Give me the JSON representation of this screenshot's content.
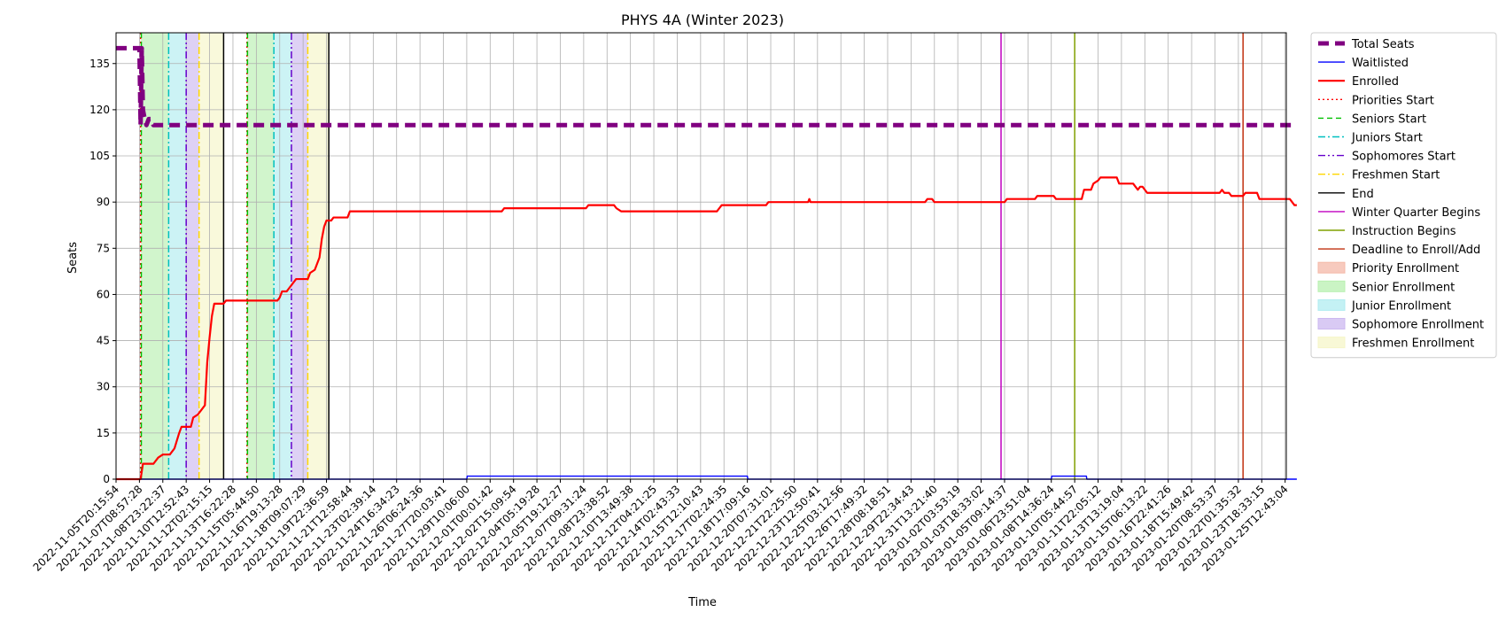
{
  "chart_data": {
    "type": "line",
    "title": "PHYS 4A (Winter 2023)",
    "xlabel": "Time",
    "ylabel": "Seats",
    "ylim": [
      0,
      145
    ],
    "yticks": [
      0,
      15,
      30,
      45,
      60,
      75,
      90,
      105,
      120,
      135
    ],
    "grid": true,
    "legend_position": "outside-right",
    "x_tick_labels": [
      "2022-11-05T20:15:54",
      "2022-11-07T08:57:28",
      "2022-11-08T23:22:37",
      "2022-11-10T12:52:43",
      "2022-11-12T02:15:15",
      "2022-11-13T16:22:28",
      "2022-11-15T05:44:50",
      "2022-11-16T19:13:28",
      "2022-11-18T09:07:29",
      "2022-11-19T22:36:59",
      "2022-11-21T12:58:44",
      "2022-11-23T02:39:14",
      "2022-11-24T16:34:23",
      "2022-11-26T06:24:36",
      "2022-11-27T20:03:41",
      "2022-11-29T10:06:00",
      "2022-12-01T00:01:42",
      "2022-12-02T15:09:54",
      "2022-12-04T05:19:28",
      "2022-12-05T19:12:27",
      "2022-12-07T09:31:24",
      "2022-12-08T23:38:52",
      "2022-12-10T13:49:38",
      "2022-12-12T04:21:25",
      "2022-12-14T02:43:33",
      "2022-12-15T12:10:43",
      "2022-12-17T02:24:35",
      "2022-12-18T17:09:16",
      "2022-12-20T07:31:01",
      "2022-12-21T22:25:50",
      "2022-12-23T12:50:41",
      "2022-12-25T03:12:56",
      "2022-12-26T17:49:32",
      "2022-12-28T08:18:51",
      "2022-12-29T22:34:43",
      "2022-12-31T13:21:40",
      "2023-01-02T03:53:19",
      "2023-01-03T18:33:02",
      "2023-01-05T09:14:37",
      "2023-01-06T23:51:04",
      "2023-01-08T14:36:24",
      "2023-01-10T05:44:57",
      "2023-01-11T22:05:12",
      "2023-01-13T13:19:04",
      "2023-01-15T06:13:22",
      "2023-01-16T22:41:26",
      "2023-01-18T15:49:42",
      "2023-01-20T08:53:37",
      "2023-01-22T01:35:32",
      "2023-01-23T18:33:15",
      "2023-01-25T12:43:04"
    ],
    "series": [
      {
        "name": "Total Seats",
        "color": "#800080",
        "style": "dashed-thick",
        "points": [
          [
            0,
            140
          ],
          [
            1.0,
            140
          ],
          [
            1.05,
            115
          ],
          [
            1.1,
            140
          ],
          [
            1.15,
            120
          ],
          [
            1.2,
            118
          ],
          [
            1.3,
            115
          ],
          [
            1.4,
            117
          ],
          [
            1.5,
            117
          ],
          [
            1.6,
            115
          ],
          [
            50.5,
            115
          ]
        ]
      },
      {
        "name": "Waitlisted",
        "color": "#0000ff",
        "style": "solid",
        "points": [
          [
            0,
            0
          ],
          [
            15.0,
            0
          ],
          [
            15.02,
            1
          ],
          [
            27.0,
            1
          ],
          [
            27.02,
            0
          ],
          [
            40.0,
            0
          ],
          [
            40.02,
            1
          ],
          [
            41.5,
            1
          ],
          [
            41.52,
            0
          ],
          [
            50.5,
            0
          ]
        ]
      },
      {
        "name": "Enrolled",
        "color": "#ff0000",
        "style": "solid-thick",
        "points": [
          [
            0,
            0
          ],
          [
            1.05,
            0
          ],
          [
            1.15,
            5
          ],
          [
            1.6,
            5
          ],
          [
            1.8,
            7
          ],
          [
            2.0,
            8
          ],
          [
            2.3,
            8
          ],
          [
            2.5,
            10
          ],
          [
            2.7,
            15
          ],
          [
            2.8,
            17
          ],
          [
            3.2,
            17
          ],
          [
            3.3,
            20
          ],
          [
            3.5,
            21
          ],
          [
            3.7,
            23
          ],
          [
            3.8,
            24
          ],
          [
            3.9,
            38
          ],
          [
            4.0,
            46
          ],
          [
            4.1,
            53
          ],
          [
            4.2,
            57
          ],
          [
            4.6,
            57
          ],
          [
            4.7,
            58
          ],
          [
            5.6,
            58
          ],
          [
            5.9,
            58
          ],
          [
            6.9,
            58
          ],
          [
            7.0,
            59
          ],
          [
            7.1,
            61
          ],
          [
            7.3,
            61
          ],
          [
            7.5,
            63
          ],
          [
            7.7,
            65
          ],
          [
            8.2,
            65
          ],
          [
            8.3,
            67
          ],
          [
            8.5,
            68
          ],
          [
            8.7,
            72
          ],
          [
            8.8,
            78
          ],
          [
            8.9,
            82
          ],
          [
            9.0,
            84
          ],
          [
            9.2,
            84
          ],
          [
            9.3,
            85
          ],
          [
            9.9,
            85
          ],
          [
            10.0,
            87
          ],
          [
            16.5,
            87
          ],
          [
            16.6,
            88
          ],
          [
            20.1,
            88
          ],
          [
            20.2,
            89
          ],
          [
            21.3,
            89
          ],
          [
            21.4,
            88
          ],
          [
            21.6,
            87
          ],
          [
            25.7,
            87
          ],
          [
            25.8,
            88
          ],
          [
            25.9,
            89
          ],
          [
            27.8,
            89
          ],
          [
            27.9,
            90
          ],
          [
            29.6,
            90
          ],
          [
            29.65,
            91
          ],
          [
            29.7,
            90
          ],
          [
            34.6,
            90
          ],
          [
            34.7,
            91
          ],
          [
            34.9,
            91
          ],
          [
            35.0,
            90
          ],
          [
            38.0,
            90
          ],
          [
            38.1,
            91
          ],
          [
            39.3,
            91
          ],
          [
            39.4,
            92
          ],
          [
            40.1,
            92
          ],
          [
            40.2,
            91
          ],
          [
            41.3,
            91
          ],
          [
            41.4,
            94
          ],
          [
            41.7,
            94
          ],
          [
            41.8,
            96
          ],
          [
            42.0,
            97
          ],
          [
            42.1,
            98
          ],
          [
            42.8,
            98
          ],
          [
            42.9,
            96
          ],
          [
            43.5,
            96
          ],
          [
            43.6,
            95
          ],
          [
            43.7,
            94
          ],
          [
            43.8,
            95
          ],
          [
            43.9,
            95
          ],
          [
            44.0,
            94
          ],
          [
            44.1,
            93
          ],
          [
            47.2,
            93
          ],
          [
            47.3,
            94
          ],
          [
            47.4,
            93
          ],
          [
            47.6,
            93
          ],
          [
            47.7,
            92
          ],
          [
            48.2,
            92
          ],
          [
            48.3,
            93
          ],
          [
            48.8,
            93
          ],
          [
            48.9,
            91
          ],
          [
            50.2,
            91
          ],
          [
            50.3,
            90
          ],
          [
            50.4,
            89
          ],
          [
            50.5,
            89
          ]
        ]
      }
    ],
    "event_lines": [
      {
        "name": "Priorities Start",
        "color": "#ff0000",
        "style": "dotted",
        "x": [
          1.05,
          5.6
        ]
      },
      {
        "name": "Seniors Start",
        "color": "#00c000",
        "style": "dashed",
        "x": [
          1.08,
          5.62
        ]
      },
      {
        "name": "Juniors Start",
        "color": "#00bfbf",
        "style": "dashdot",
        "x": [
          2.25,
          6.75
        ]
      },
      {
        "name": "Sophomores Start",
        "color": "#6600cc",
        "style": "dashdotdot",
        "x": [
          3.0,
          7.5
        ]
      },
      {
        "name": "Freshmen Start",
        "color": "#ffd700",
        "style": "dashdot",
        "x": [
          3.55,
          8.2
        ]
      },
      {
        "name": "End",
        "color": "#000000",
        "style": "solid",
        "x": [
          4.6,
          9.1
        ]
      },
      {
        "name": "Winter Quarter Begins",
        "color": "#c000c0",
        "style": "solid",
        "x": [
          37.85
        ]
      },
      {
        "name": "Instruction Begins",
        "color": "#80a000",
        "style": "solid",
        "x": [
          41.0
        ]
      },
      {
        "name": "Deadline to Enroll/Add",
        "color": "#c03010",
        "style": "solid",
        "x": [
          48.2
        ]
      }
    ],
    "spans": [
      {
        "name": "Priority Enrollment",
        "color": "#f4b8a8",
        "ranges": [
          [
            1.05,
            1.08
          ],
          [
            5.6,
            5.62
          ]
        ]
      },
      {
        "name": "Senior Enrollment",
        "color": "#b8f0b0",
        "ranges": [
          [
            1.08,
            2.25
          ],
          [
            5.62,
            6.75
          ]
        ]
      },
      {
        "name": "Junior Enrollment",
        "color": "#b0ecf0",
        "ranges": [
          [
            2.25,
            3.0
          ],
          [
            6.75,
            7.5
          ]
        ]
      },
      {
        "name": "Sophomore Enrollment",
        "color": "#ccb8f0",
        "ranges": [
          [
            3.0,
            3.55
          ],
          [
            7.5,
            8.2
          ]
        ]
      },
      {
        "name": "Freshmen Enrollment",
        "color": "#f6f6c8",
        "ranges": [
          [
            3.55,
            4.6
          ],
          [
            8.2,
            9.1
          ]
        ]
      }
    ],
    "legend": [
      {
        "label": "Total Seats",
        "kind": "line",
        "color": "#800080",
        "style": "dashed-thick"
      },
      {
        "label": "Waitlisted",
        "kind": "line",
        "color": "#0000ff",
        "style": "solid"
      },
      {
        "label": "Enrolled",
        "kind": "line",
        "color": "#ff0000",
        "style": "solid-thick"
      },
      {
        "label": "Priorities Start",
        "kind": "line",
        "color": "#ff0000",
        "style": "dotted"
      },
      {
        "label": "Seniors Start",
        "kind": "line",
        "color": "#00c000",
        "style": "dashed"
      },
      {
        "label": "Juniors Start",
        "kind": "line",
        "color": "#00bfbf",
        "style": "dashdot"
      },
      {
        "label": "Sophomores Start",
        "kind": "line",
        "color": "#6600cc",
        "style": "dashdotdot"
      },
      {
        "label": "Freshmen Start",
        "kind": "line",
        "color": "#ffd700",
        "style": "dashdot"
      },
      {
        "label": "End",
        "kind": "line",
        "color": "#000000",
        "style": "solid"
      },
      {
        "label": "Winter Quarter Begins",
        "kind": "line",
        "color": "#c000c0",
        "style": "solid"
      },
      {
        "label": "Instruction Begins",
        "kind": "line",
        "color": "#80a000",
        "style": "solid"
      },
      {
        "label": "Deadline to Enroll/Add",
        "kind": "line",
        "color": "#c03010",
        "style": "solid"
      },
      {
        "label": "Priority Enrollment",
        "kind": "patch",
        "color": "#f4b8a8"
      },
      {
        "label": "Senior Enrollment",
        "kind": "patch",
        "color": "#b8f0b0"
      },
      {
        "label": "Junior Enrollment",
        "kind": "patch",
        "color": "#b0ecf0"
      },
      {
        "label": "Sophomore Enrollment",
        "kind": "patch",
        "color": "#ccb8f0"
      },
      {
        "label": "Freshmen Enrollment",
        "kind": "patch",
        "color": "#f6f6c8"
      }
    ]
  }
}
